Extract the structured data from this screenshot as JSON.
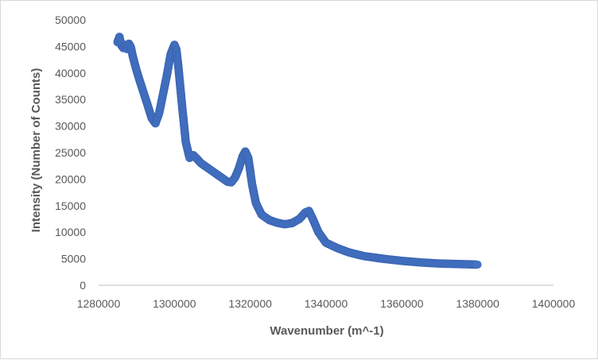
{
  "colors": {
    "series": "#4472C4",
    "axis": "#bfbfbf",
    "text": "#595959",
    "border": "#d9d9d9"
  },
  "chart_data": {
    "type": "scatter",
    "title": "",
    "xlabel": "Wavenumber (m^-1)",
    "ylabel": "Intensity (Number of Counts)",
    "xlim": [
      1280000,
      1400000
    ],
    "ylim": [
      0,
      50000
    ],
    "x_ticks": [
      1280000,
      1300000,
      1320000,
      1340000,
      1360000,
      1380000,
      1400000
    ],
    "y_ticks": [
      0,
      5000,
      10000,
      15000,
      20000,
      25000,
      30000,
      35000,
      40000,
      45000,
      50000
    ],
    "grid": false,
    "legend": "none",
    "series": [
      {
        "x": [
          1285000,
          1285500,
          1286000,
          1286500,
          1287000,
          1287500,
          1288000,
          1288500,
          1289000,
          1290000,
          1291000,
          1292000,
          1293000,
          1294000,
          1295000,
          1296000,
          1297000,
          1298000,
          1299000,
          1300000,
          1300500,
          1301000,
          1302000,
          1303000,
          1304000,
          1305000,
          1306000,
          1307000,
          1308000,
          1310000,
          1312000,
          1314000,
          1315000,
          1316000,
          1317000,
          1318000,
          1318700,
          1319500,
          1320500,
          1321500,
          1323000,
          1325000,
          1327000,
          1329000,
          1331000,
          1333000,
          1334500,
          1335500,
          1336500,
          1338000,
          1340000,
          1343000,
          1346000,
          1350000,
          1355000,
          1360000,
          1365000,
          1370000,
          1375000,
          1380000
        ],
        "y": [
          45800,
          46800,
          45200,
          44700,
          45300,
          44500,
          45500,
          44900,
          43200,
          40500,
          38200,
          36000,
          33800,
          31500,
          30500,
          32500,
          36000,
          39500,
          43500,
          45300,
          44500,
          41500,
          34000,
          27000,
          24000,
          24500,
          23800,
          23000,
          22500,
          21500,
          20500,
          19500,
          19400,
          20300,
          22000,
          24300,
          25200,
          24000,
          19000,
          15500,
          13300,
          12300,
          11800,
          11500,
          11700,
          12500,
          13700,
          14000,
          12500,
          10000,
          8000,
          7000,
          6200,
          5500,
          5000,
          4600,
          4300,
          4100,
          4000,
          3900
        ]
      }
    ]
  }
}
